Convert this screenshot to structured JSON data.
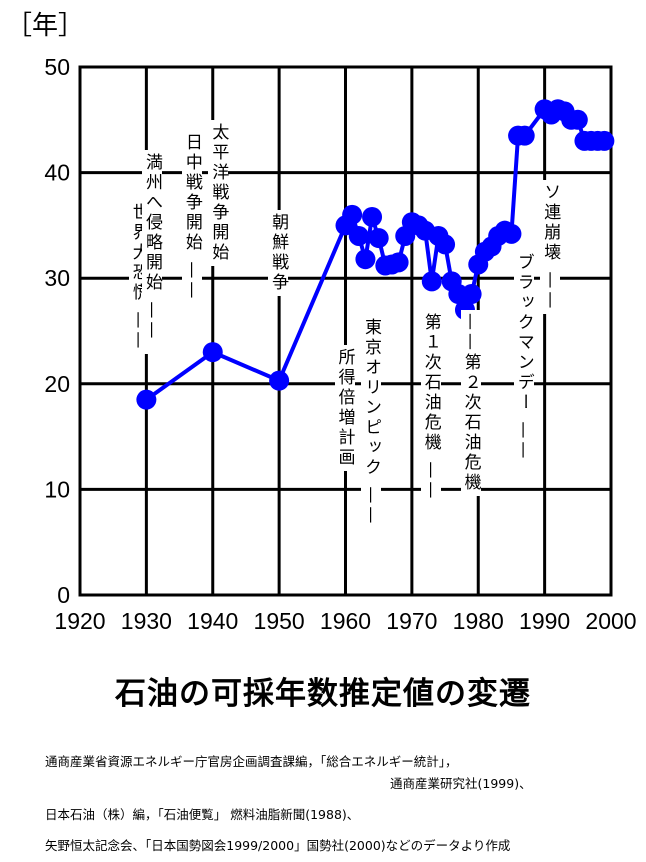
{
  "chart_data": {
    "type": "line",
    "title": "石油の可採年数推定値の変遷",
    "ylabel": "［年］",
    "xlabel": "",
    "xlim": [
      1920,
      2000
    ],
    "ylim": [
      0,
      50
    ],
    "xticks": [
      "1920",
      "1930",
      "1940",
      "1950",
      "1960",
      "1970",
      "1980",
      "1990",
      "2000"
    ],
    "yticks": [
      "0",
      "10",
      "20",
      "30",
      "40",
      "50"
    ],
    "grid": true,
    "color": "#0000ff",
    "x": [
      1930,
      1940,
      1950,
      1960,
      1961,
      1962,
      1963,
      1964,
      1965,
      1966,
      1967,
      1968,
      1969,
      1970,
      1971,
      1972,
      1973,
      1974,
      1975,
      1976,
      1977,
      1978,
      1979,
      1980,
      1981,
      1982,
      1983,
      1984,
      1985,
      1986,
      1987,
      1990,
      1991,
      1992,
      1993,
      1994,
      1995,
      1996,
      1997,
      1998,
      1999
    ],
    "y": [
      18.5,
      23,
      20.3,
      35,
      36,
      34,
      31.8,
      35.8,
      33.8,
      31.2,
      31.3,
      31.5,
      34,
      35.3,
      35,
      34.5,
      29.7,
      34,
      33.2,
      29.7,
      28.5,
      27,
      28.5,
      31.3,
      32.5,
      33,
      34,
      34.5,
      34.2,
      43.5,
      43.5,
      46,
      45.5,
      46,
      45.8,
      45,
      45,
      43,
      43,
      43,
      43
    ],
    "annotations": [
      {
        "year": 1929,
        "text": "世界大恐慌 ——"
      },
      {
        "year": 1931,
        "text": "満州へ侵略開始 ——"
      },
      {
        "year": 1937,
        "text": "日中戦争開始 ——"
      },
      {
        "year": 1941,
        "text": "太平洋戦争開始"
      },
      {
        "year": 1950,
        "text": "朝鮮戦争"
      },
      {
        "year": 1960,
        "text": "所得倍増計画"
      },
      {
        "year": 1964,
        "text": "東京オリンピック ——"
      },
      {
        "year": 1973,
        "text": "第１次石油危機 ——"
      },
      {
        "year": 1979,
        "text": "——第２次石油危機"
      },
      {
        "year": 1987,
        "text": "ブラックマンデー ——"
      },
      {
        "year": 1991,
        "text": "ソ連崩壊 ——"
      }
    ]
  },
  "sources": [
    "通商産業省資源エネルギー庁官房企画調査課編，「総合エネルギー統計」，",
    "通商産業研究社(1999)、",
    "日本石油（株）編，「石油便覧」 燃料油脂新聞(1988)、",
    "矢野恒太記念会、「日本国勢図会1999/2000」国勢社(2000)などのデータより作成"
  ]
}
